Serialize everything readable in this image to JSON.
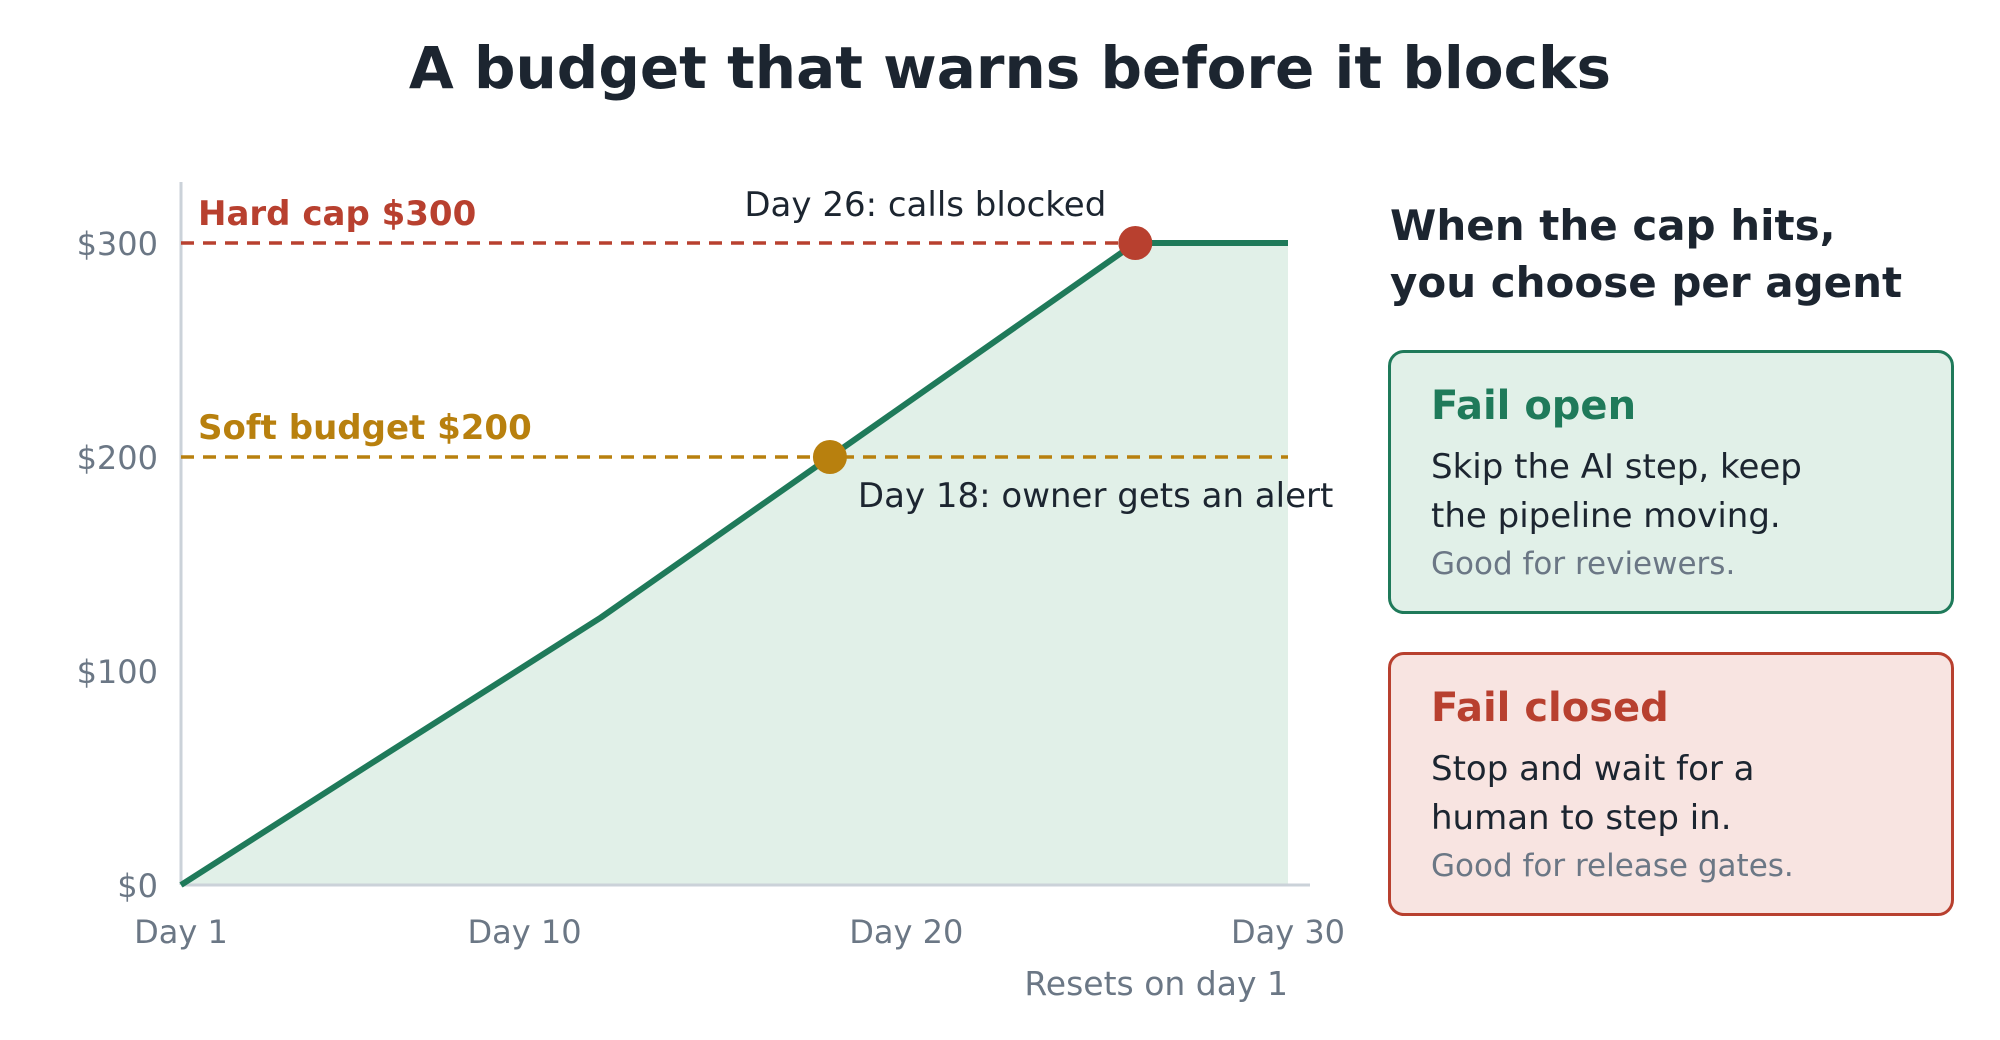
{
  "chart_data": {
    "type": "area",
    "title": "A budget that warns before it blocks",
    "x": [
      1,
      6,
      12,
      18,
      26,
      30
    ],
    "values": [
      0,
      57,
      125,
      200,
      300,
      300
    ],
    "xlim": [
      1,
      30
    ],
    "ylim": [
      0,
      300
    ],
    "x_ticks": [
      {
        "value": 1,
        "label": "Day 1"
      },
      {
        "value": 10,
        "label": "Day 10"
      },
      {
        "value": 20,
        "label": "Day 20"
      },
      {
        "value": 30,
        "label": "Day 30"
      }
    ],
    "y_ticks": [
      {
        "value": 0,
        "label": "$0"
      },
      {
        "value": 100,
        "label": "$100"
      },
      {
        "value": 200,
        "label": "$200"
      },
      {
        "value": 300,
        "label": "$300"
      }
    ],
    "xlabel": "Resets on day 1",
    "grid": false,
    "thresholds": [
      {
        "label": "Hard cap $300",
        "value": 300,
        "color": "#b8402f"
      },
      {
        "label": "Soft budget $200",
        "value": 200,
        "color": "#b8800e"
      }
    ],
    "events": [
      {
        "x": 26,
        "y": 300,
        "label": "Day 26: calls blocked",
        "color": "#b8402f"
      },
      {
        "x": 18,
        "y": 200,
        "label": "Day 18: owner gets an alert",
        "color": "#b8800e"
      }
    ],
    "line_color": "#1f7a5a",
    "fill_color": "#e1f0e8"
  },
  "panel": {
    "heading_line1": "When the cap hits,",
    "heading_line2": "you choose per agent",
    "cards": [
      {
        "title": "Fail open",
        "line1": "Skip the AI step, keep",
        "line2": "the pipeline moving.",
        "note": "Good for reviewers.",
        "color": "#1f7a5a",
        "background": "#e1f0e8"
      },
      {
        "title": "Fail closed",
        "line1": "Stop and wait for a",
        "line2": "human to step in.",
        "note": "Good for release gates.",
        "color": "#b8402f",
        "background": "#f8e4e1"
      }
    ]
  }
}
